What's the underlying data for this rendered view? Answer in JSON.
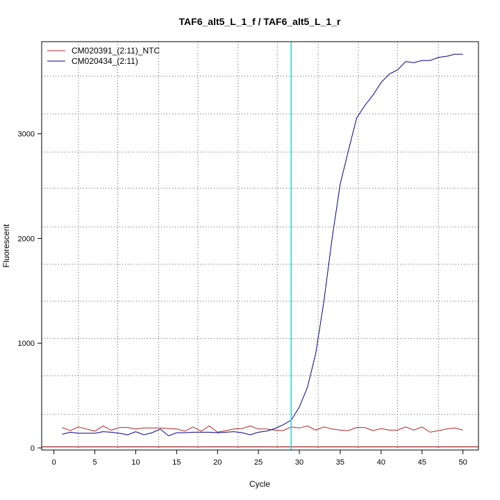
{
  "chart_data": {
    "type": "line",
    "title": "TAF6_alt5_L_1_f / TAF6_alt5_L_1_r",
    "xlabel": "Cycle",
    "ylabel": "Fluorescent",
    "xlim": [
      -1.5,
      51.9
    ],
    "ylim": [
      -20,
      3880
    ],
    "x_ticks": [
      0,
      5,
      10,
      15,
      20,
      25,
      30,
      35,
      40,
      45,
      50
    ],
    "y_ticks": [
      0,
      1000,
      2000,
      3000
    ],
    "x_grid": [
      3,
      7.8,
      12.8,
      17.6,
      22.5,
      27.3,
      32.3,
      37.2,
      42,
      47
    ],
    "y_grid": [
      10,
      320,
      690,
      1045,
      1400,
      1755,
      2110,
      2480,
      2825,
      3190,
      3550
    ],
    "threshold": {
      "cycle": 29,
      "color": "#00e5ee"
    },
    "baseline": {
      "value": 10,
      "color": "#8b0000"
    },
    "legend_position": "top-left",
    "x": [
      1,
      2,
      3,
      4,
      5,
      6,
      7,
      8,
      9,
      10,
      11,
      12,
      13,
      14,
      15,
      16,
      17,
      18,
      19,
      20,
      21,
      22,
      23,
      24,
      25,
      26,
      27,
      28,
      29,
      30,
      31,
      32,
      33,
      34,
      35,
      36,
      37,
      38,
      39,
      40,
      41,
      42,
      43,
      44,
      45,
      46,
      47,
      48,
      49,
      50
    ],
    "series": [
      {
        "name": "CM020391_(2:11)_NTC",
        "color": "#b22222",
        "values": [
          195,
          165,
          200,
          180,
          160,
          210,
          170,
          195,
          195,
          180,
          190,
          190,
          190,
          185,
          180,
          160,
          200,
          160,
          210,
          150,
          165,
          180,
          185,
          210,
          180,
          180,
          170,
          165,
          200,
          190,
          210,
          170,
          200,
          180,
          170,
          165,
          195,
          195,
          165,
          185,
          170,
          170,
          200,
          170,
          200,
          150,
          165,
          180,
          190,
          170
        ]
      },
      {
        "name": "CM020434_(2:11)",
        "color": "#00008b",
        "values": [
          130,
          150,
          140,
          140,
          140,
          155,
          150,
          140,
          125,
          155,
          125,
          145,
          180,
          115,
          145,
          145,
          150,
          150,
          150,
          145,
          150,
          155,
          145,
          125,
          150,
          160,
          185,
          220,
          265,
          390,
          580,
          900,
          1400,
          2000,
          2520,
          2840,
          3150,
          3270,
          3370,
          3490,
          3570,
          3610,
          3690,
          3680,
          3700,
          3700,
          3730,
          3740,
          3760,
          3760
        ]
      }
    ]
  }
}
